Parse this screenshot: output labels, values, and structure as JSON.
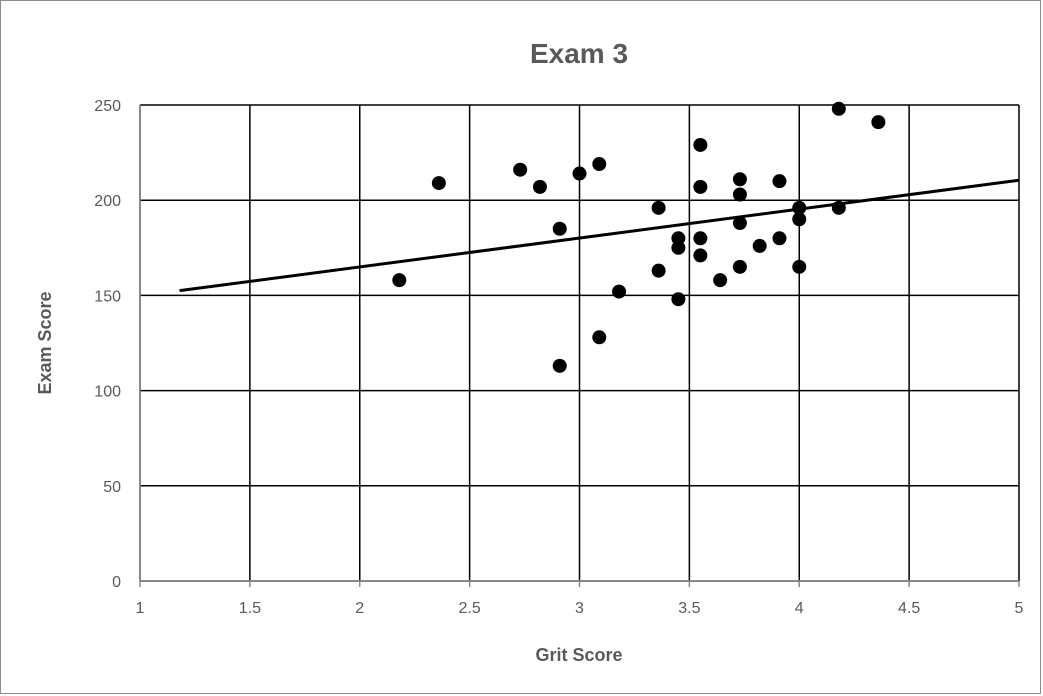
{
  "chart_data": {
    "type": "scatter",
    "title": "Exam 3",
    "xlabel": "Grit Score",
    "ylabel": "Exam Score",
    "xlim": [
      1,
      5
    ],
    "ylim": [
      0,
      250
    ],
    "x_ticks": [
      1,
      1.5,
      2,
      2.5,
      3,
      3.5,
      4,
      4.5,
      5
    ],
    "y_ticks": [
      0,
      50,
      100,
      150,
      200,
      250
    ],
    "x_tick_labels": [
      "1",
      "1.5",
      "2",
      "2.5",
      "3",
      "3.5",
      "4",
      "4.5",
      "5"
    ],
    "y_tick_labels": [
      "0",
      "50",
      "100",
      "150",
      "200",
      "250"
    ],
    "grid": true,
    "legend": false,
    "marker_color": "#000000",
    "points": [
      {
        "x": 2.18,
        "y": 158
      },
      {
        "x": 2.36,
        "y": 209
      },
      {
        "x": 2.73,
        "y": 216
      },
      {
        "x": 2.82,
        "y": 207
      },
      {
        "x": 2.91,
        "y": 185
      },
      {
        "x": 2.91,
        "y": 113
      },
      {
        "x": 3.0,
        "y": 214
      },
      {
        "x": 3.09,
        "y": 219
      },
      {
        "x": 3.09,
        "y": 128
      },
      {
        "x": 3.18,
        "y": 152
      },
      {
        "x": 3.36,
        "y": 196
      },
      {
        "x": 3.36,
        "y": 163
      },
      {
        "x": 3.45,
        "y": 180
      },
      {
        "x": 3.45,
        "y": 175
      },
      {
        "x": 3.45,
        "y": 148
      },
      {
        "x": 3.55,
        "y": 229
      },
      {
        "x": 3.55,
        "y": 207
      },
      {
        "x": 3.55,
        "y": 180
      },
      {
        "x": 3.55,
        "y": 171
      },
      {
        "x": 3.64,
        "y": 158
      },
      {
        "x": 3.73,
        "y": 211
      },
      {
        "x": 3.73,
        "y": 203
      },
      {
        "x": 3.73,
        "y": 188
      },
      {
        "x": 3.73,
        "y": 165
      },
      {
        "x": 3.82,
        "y": 176
      },
      {
        "x": 3.91,
        "y": 210
      },
      {
        "x": 3.91,
        "y": 180
      },
      {
        "x": 4.0,
        "y": 196
      },
      {
        "x": 4.0,
        "y": 190
      },
      {
        "x": 4.0,
        "y": 165
      },
      {
        "x": 4.18,
        "y": 248
      },
      {
        "x": 4.18,
        "y": 196
      },
      {
        "x": 4.36,
        "y": 241
      }
    ],
    "trendline": {
      "type": "linear",
      "x_start": 1.18,
      "y_start": 152.5,
      "x_end": 5.0,
      "y_end": 210.5
    }
  }
}
